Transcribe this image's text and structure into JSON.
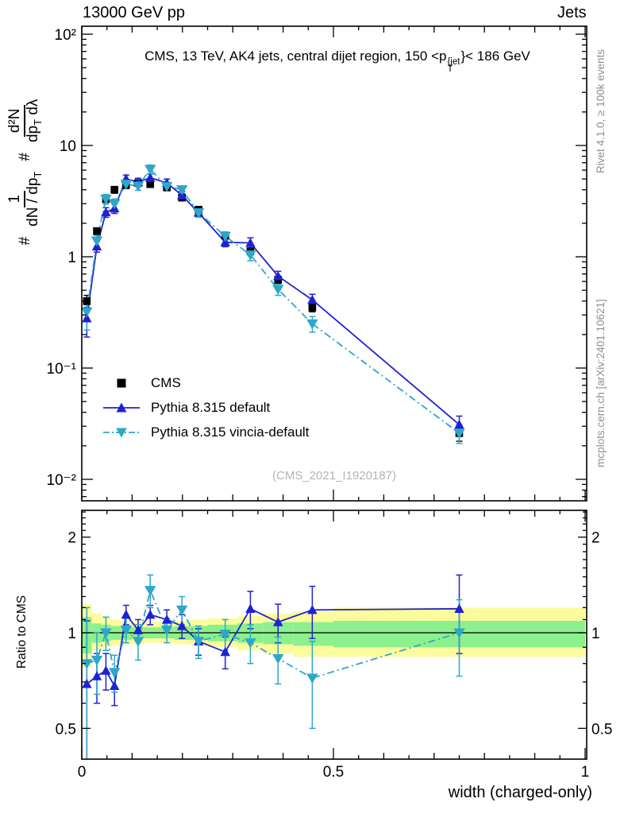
{
  "header": {
    "left": "13000 GeV pp",
    "right": "Jets"
  },
  "title": {
    "pre": "CMS, 13 TeV, AK4 jets, central dijet region, 150 <p",
    "p_sup": "{jet",
    "p_sub": "T",
    "post": "}< 186 GeV"
  },
  "ylabel": {
    "hash1": "#",
    "f1_num": "1",
    "f1_den_pre": "dN / dp",
    "f1_den_sub": "T",
    "hash2": "#",
    "f2_num": "d²N",
    "f2_den_pre": "dp",
    "f2_den_sub": "T",
    "f2_den_post": " dλ"
  },
  "watermark": "(CMS_2021_I1920187)",
  "side": {
    "rivet": "Rivet 4.1.0, ≥ 100k events",
    "mcplots": "mcplots.cern.ch [arXiv:2401.10621]"
  },
  "chart_data": {
    "type": "line",
    "xlabel": "width (charged-only)",
    "ratio_ylabel": "Ratio to CMS",
    "xlim": [
      0,
      1.003
    ],
    "main_ylim": [
      0.0066,
      118
    ],
    "main_yscale": "log",
    "ratio_ylim": [
      0.4,
      2.43
    ],
    "ratio_yscale": "log",
    "grid": false,
    "legend_position": "upper-left-inside",
    "x": [
      0.01,
      0.03,
      0.048,
      0.065,
      0.088,
      0.112,
      0.136,
      0.169,
      0.199,
      0.232,
      0.285,
      0.335,
      0.39,
      0.458,
      0.75
    ],
    "series": [
      {
        "name": "CMS",
        "marker": "square",
        "color": "#000000",
        "line": "none",
        "values": [
          0.4,
          1.7,
          3.3,
          4.0,
          4.4,
          4.6,
          4.5,
          4.2,
          3.4,
          2.65,
          1.55,
          1.12,
          0.62,
          0.35,
          0.026
        ],
        "errors": [
          0.05,
          0.12,
          0.22,
          0.28,
          0.3,
          0.3,
          0.3,
          0.28,
          0.22,
          0.18,
          0.11,
          0.08,
          0.05,
          0.03,
          0.004
        ]
      },
      {
        "name": "Pythia 8.315 default",
        "marker": "triangle-up",
        "color": "#2121d4",
        "line": "solid",
        "values": [
          0.28,
          1.24,
          2.51,
          2.72,
          5.02,
          4.69,
          5.13,
          4.62,
          3.57,
          2.49,
          1.35,
          1.33,
          0.67,
          0.41,
          0.031
        ],
        "errors": [
          0.09,
          0.14,
          0.25,
          0.27,
          0.4,
          0.38,
          0.4,
          0.37,
          0.29,
          0.21,
          0.12,
          0.15,
          0.07,
          0.05,
          0.006
        ],
        "ratio": [
          0.69,
          0.73,
          0.76,
          0.68,
          1.14,
          1.02,
          1.14,
          1.1,
          1.05,
          0.94,
          0.87,
          1.19,
          1.08,
          1.18,
          1.19
        ],
        "ratio_errors": [
          0.4,
          0.13,
          0.1,
          0.09,
          0.08,
          0.08,
          0.08,
          0.08,
          0.09,
          0.09,
          0.1,
          0.16,
          0.15,
          0.22,
          0.33
        ]
      },
      {
        "name": "Pythia 8.315 vincia-default",
        "marker": "triangle-down",
        "color": "#2da7c9",
        "line": "dashdot",
        "values": [
          0.32,
          1.39,
          3.3,
          3.0,
          4.49,
          4.32,
          6.12,
          4.28,
          4.01,
          2.49,
          1.53,
          1.04,
          0.51,
          0.25,
          0.026
        ],
        "errors": [
          0.1,
          0.17,
          0.33,
          0.3,
          0.38,
          0.36,
          0.55,
          0.36,
          0.33,
          0.22,
          0.14,
          0.12,
          0.06,
          0.04,
          0.005
        ],
        "ratio": [
          0.8,
          0.82,
          1.0,
          0.75,
          1.02,
          0.94,
          1.36,
          1.02,
          1.18,
          0.94,
          0.99,
          0.93,
          0.83,
          0.72,
          1.0
        ],
        "ratio_errors": [
          0.4,
          0.18,
          0.12,
          0.1,
          0.09,
          0.12,
          0.16,
          0.09,
          0.12,
          0.11,
          0.11,
          0.13,
          0.14,
          0.22,
          0.27
        ]
      }
    ],
    "bands": {
      "yellow_color": "#fcfc9c",
      "green_color": "#8cf08c",
      "edges": [
        0.0,
        0.02,
        0.04,
        0.058,
        0.076,
        0.1,
        0.124,
        0.15,
        0.184,
        0.216,
        0.25,
        0.31,
        0.36,
        0.42,
        0.5,
        1.0
      ],
      "yellow": [
        [
          0.78,
          1.23
        ],
        [
          0.88,
          1.15
        ],
        [
          0.9,
          1.12
        ],
        [
          0.91,
          1.1
        ],
        [
          0.92,
          1.09
        ],
        [
          0.92,
          1.08
        ],
        [
          0.93,
          1.08
        ],
        [
          0.93,
          1.08
        ],
        [
          0.92,
          1.09
        ],
        [
          0.91,
          1.1
        ],
        [
          0.9,
          1.11
        ],
        [
          0.88,
          1.13
        ],
        [
          0.86,
          1.15
        ],
        [
          0.84,
          1.17
        ],
        [
          0.84,
          1.2
        ]
      ],
      "green": [
        [
          0.86,
          1.12
        ],
        [
          0.93,
          1.07
        ],
        [
          0.94,
          1.06
        ],
        [
          0.95,
          1.05
        ],
        [
          0.95,
          1.05
        ],
        [
          0.96,
          1.04
        ],
        [
          0.96,
          1.04
        ],
        [
          0.96,
          1.04
        ],
        [
          0.95,
          1.05
        ],
        [
          0.95,
          1.05
        ],
        [
          0.94,
          1.06
        ],
        [
          0.93,
          1.07
        ],
        [
          0.92,
          1.08
        ],
        [
          0.91,
          1.08
        ],
        [
          0.9,
          1.09
        ]
      ]
    },
    "axes": {
      "x_ticks": [
        {
          "v": 0,
          "label": "0"
        },
        {
          "v": 0.5,
          "label": "0.5"
        },
        {
          "v": 1,
          "label": "1"
        }
      ],
      "y_main_ticks": [
        {
          "v": 100,
          "label": "10²"
        },
        {
          "v": 10,
          "label": "10"
        },
        {
          "v": 1,
          "label": "1"
        },
        {
          "v": 0.1,
          "label": "10⁻¹"
        },
        {
          "v": 0.01,
          "label": "10⁻²"
        }
      ],
      "y_ratio_ticks": [
        {
          "v": 2,
          "label": "2"
        },
        {
          "v": 1,
          "label": "1"
        },
        {
          "v": 0.5,
          "label": "0.5"
        }
      ]
    }
  }
}
